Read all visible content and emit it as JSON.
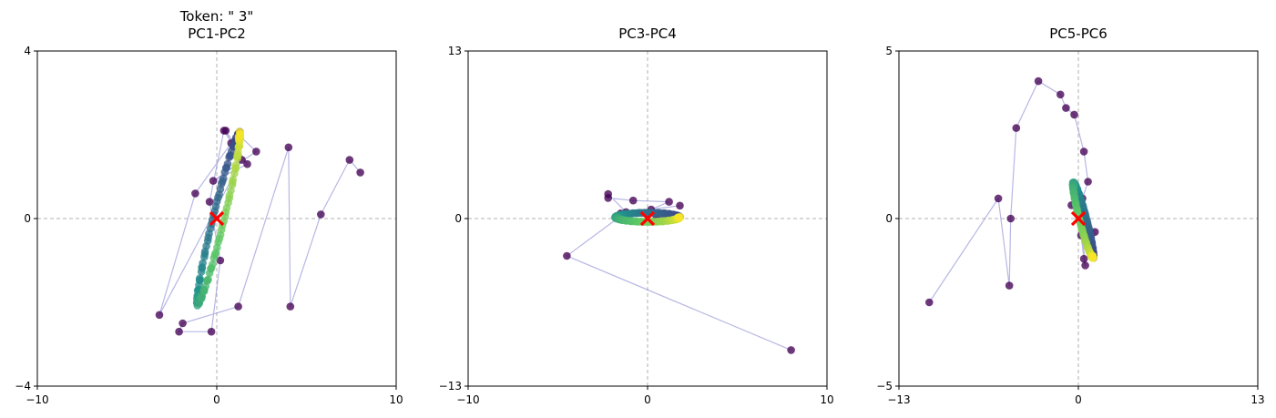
{
  "figure_title": "Token: \" 3\"",
  "colors": {
    "trajectory_line": "#7b7bd0",
    "point_early": "#440154",
    "point_mid": "#21918c",
    "point_late": "#fde725",
    "origin_marker": "#ff0000",
    "crosshair": "#b0b0b0",
    "frame": "#000000"
  },
  "chart_data": [
    {
      "type": "scatter",
      "title": "PC1-PC2",
      "xlabel": "",
      "ylabel": "",
      "xlim": [
        -10,
        10
      ],
      "ylim": [
        -4,
        4
      ],
      "xticks": [
        "−10",
        "0",
        "10"
      ],
      "yticks": [
        "−4",
        "0",
        "4"
      ],
      "grid": false,
      "origin_marker": [
        0,
        0
      ],
      "trajectory": [
        [
          8.0,
          1.1
        ],
        [
          7.4,
          1.4
        ],
        [
          5.8,
          0.1
        ],
        [
          4.1,
          -2.1
        ],
        [
          4.0,
          1.7
        ],
        [
          1.2,
          -2.1
        ],
        [
          -1.9,
          -2.5
        ],
        [
          -2.1,
          -2.7
        ],
        [
          -0.3,
          -2.7
        ],
        [
          0.2,
          -1.0
        ],
        [
          -0.4,
          0.4
        ],
        [
          0.4,
          2.1
        ],
        [
          1.4,
          1.4
        ],
        [
          -3.2,
          -2.3
        ],
        [
          -1.2,
          0.6
        ],
        [
          0.8,
          1.8
        ],
        [
          0.5,
          2.1
        ],
        [
          1.7,
          1.3
        ],
        [
          -0.2,
          0.9
        ],
        [
          2.2,
          1.6
        ]
      ],
      "ring": {
        "center": [
          0.1,
          0.0
        ],
        "half_length": 2.3,
        "half_width": 0.28,
        "angle_deg": 60,
        "n": 120
      }
    },
    {
      "type": "scatter",
      "title": "PC3-PC4",
      "xlabel": "",
      "ylabel": "",
      "xlim": [
        -10,
        10
      ],
      "ylim": [
        -13,
        13
      ],
      "xticks": [
        "−10",
        "0",
        "10"
      ],
      "yticks": [
        "−13",
        "0",
        "13"
      ],
      "grid": false,
      "origin_marker": [
        0,
        0
      ],
      "trajectory": [
        [
          8.0,
          -10.2
        ],
        [
          -4.5,
          -2.9
        ],
        [
          -1.2,
          0.5
        ],
        [
          -2.2,
          1.9
        ],
        [
          -2.2,
          1.6
        ],
        [
          -0.8,
          1.4
        ],
        [
          1.2,
          1.3
        ],
        [
          0.2,
          0.7
        ],
        [
          1.8,
          1.0
        ],
        [
          -1.5,
          0.4
        ],
        [
          1.0,
          0.2
        ],
        [
          0.5,
          0.1
        ]
      ],
      "ring": {
        "center": [
          0.0,
          0.1
        ],
        "half_length": 1.75,
        "half_width": 0.35,
        "angle_deg": 0,
        "n": 120
      }
    },
    {
      "type": "scatter",
      "title": "PC5-PC6",
      "xlabel": "",
      "ylabel": "",
      "xlim": [
        -13,
        13
      ],
      "ylim": [
        -5,
        5
      ],
      "xticks": [
        "−13",
        "0",
        "13"
      ],
      "yticks": [
        "−5",
        "0",
        "5"
      ],
      "grid": false,
      "origin_marker": [
        0,
        0
      ],
      "trajectory": [
        [
          -10.8,
          -2.5
        ],
        [
          -5.8,
          0.6
        ],
        [
          -5.0,
          -2.0
        ],
        [
          -4.9,
          0.0
        ],
        [
          -4.5,
          2.7
        ],
        [
          -2.9,
          4.1
        ],
        [
          -1.3,
          3.7
        ],
        [
          -0.9,
          3.3
        ],
        [
          -0.3,
          3.1
        ],
        [
          0.4,
          2.0
        ],
        [
          0.7,
          1.1
        ],
        [
          0.3,
          0.6
        ],
        [
          0.2,
          -0.5
        ],
        [
          0.4,
          -1.2
        ],
        [
          0.5,
          -1.4
        ],
        [
          0.2,
          -0.1
        ],
        [
          -0.5,
          0.4
        ],
        [
          1.2,
          -0.4
        ]
      ],
      "ring": {
        "center": [
          0.35,
          -0.05
        ],
        "half_length": 1.3,
        "half_width": 0.22,
        "angle_deg": -57,
        "n": 120
      }
    }
  ]
}
